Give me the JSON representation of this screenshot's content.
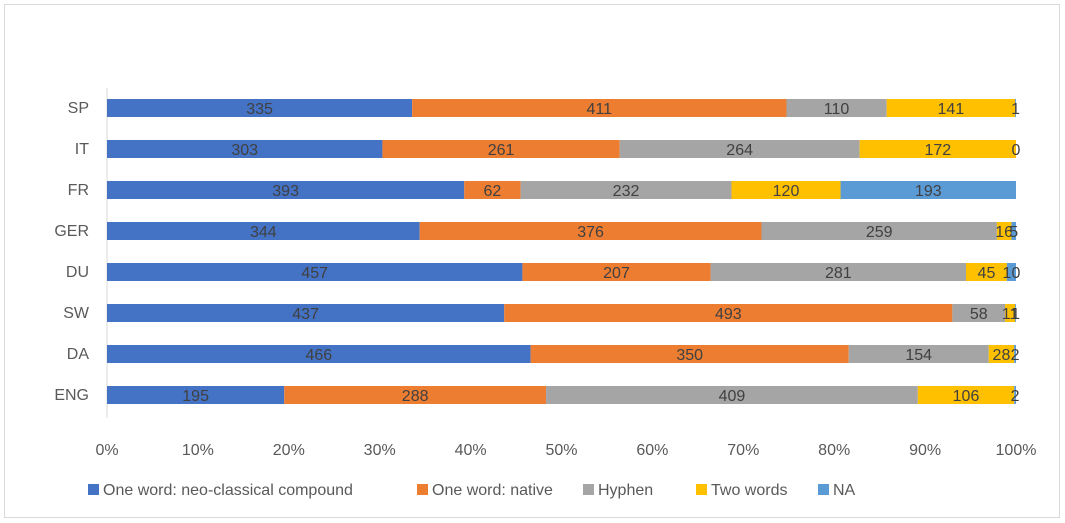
{
  "chart_data": {
    "type": "bar",
    "orientation": "horizontal",
    "stacked": "percent",
    "categories": [
      "SP",
      "IT",
      "FR",
      "GER",
      "DU",
      "SW",
      "DA",
      "ENG"
    ],
    "series": [
      {
        "name": "One word: neo-classical compound",
        "color": "#4472c4",
        "values": [
          335,
          303,
          393,
          344,
          457,
          437,
          466,
          195
        ]
      },
      {
        "name": "One word: native",
        "color": "#ed7d31",
        "values": [
          411,
          261,
          62,
          376,
          207,
          493,
          350,
          288
        ]
      },
      {
        "name": "Hyphen",
        "color": "#a5a5a5",
        "values": [
          110,
          264,
          232,
          259,
          281,
          58,
          154,
          409
        ]
      },
      {
        "name": "Two words",
        "color": "#ffc000",
        "values": [
          141,
          172,
          120,
          16,
          45,
          11,
          28,
          106
        ]
      },
      {
        "name": "NA",
        "color": "#5b9bd5",
        "values": [
          1,
          0,
          193,
          5,
          10,
          1,
          2,
          2
        ]
      }
    ],
    "xlim": [
      0,
      100
    ],
    "x_ticks": [
      "0%",
      "10%",
      "20%",
      "30%",
      "40%",
      "50%",
      "60%",
      "70%",
      "80%",
      "90%",
      "100%"
    ],
    "legend_position": "bottom",
    "grid": false
  }
}
